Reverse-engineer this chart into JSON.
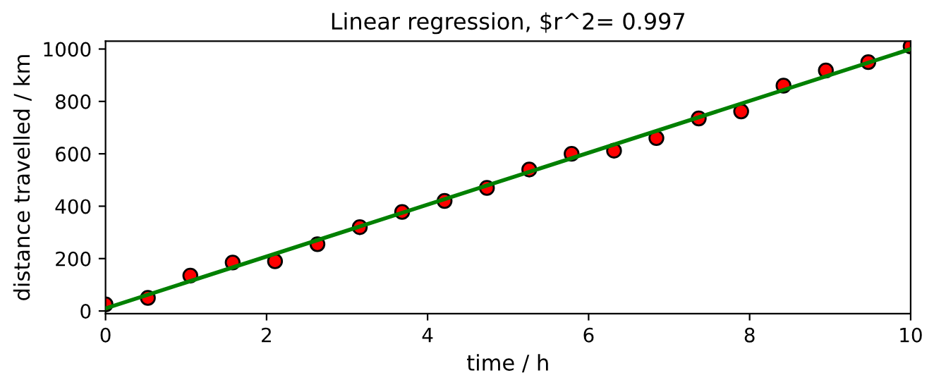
{
  "chart_data": {
    "type": "scatter",
    "title": "Linear regression, $r^2= 0.997",
    "xlabel": "time / h",
    "ylabel": "distance travelled / km",
    "xlim": [
      0,
      10
    ],
    "xticks": [
      0,
      2,
      4,
      6,
      8,
      10
    ],
    "ylim": [
      -10,
      1030
    ],
    "yticks": [
      0,
      200,
      400,
      600,
      800,
      1000
    ],
    "grid": false,
    "legend": false,
    "series": [
      {
        "marker": "circle",
        "color": "#ff0000",
        "x": [
          0,
          0.526,
          1.053,
          1.579,
          2.105,
          2.632,
          3.158,
          3.684,
          4.211,
          4.737,
          5.263,
          5.789,
          6.316,
          6.842,
          7.368,
          7.895,
          8.421,
          8.947,
          9.474,
          10
        ],
        "values": [
          25,
          50,
          135,
          185,
          190,
          255,
          320,
          378,
          420,
          470,
          540,
          600,
          612,
          660,
          735,
          762,
          860,
          918,
          950,
          1010
        ]
      },
      {
        "type": "line",
        "color": "#008000",
        "x": [
          0,
          10
        ],
        "values": [
          10,
          1000
        ]
      }
    ]
  }
}
